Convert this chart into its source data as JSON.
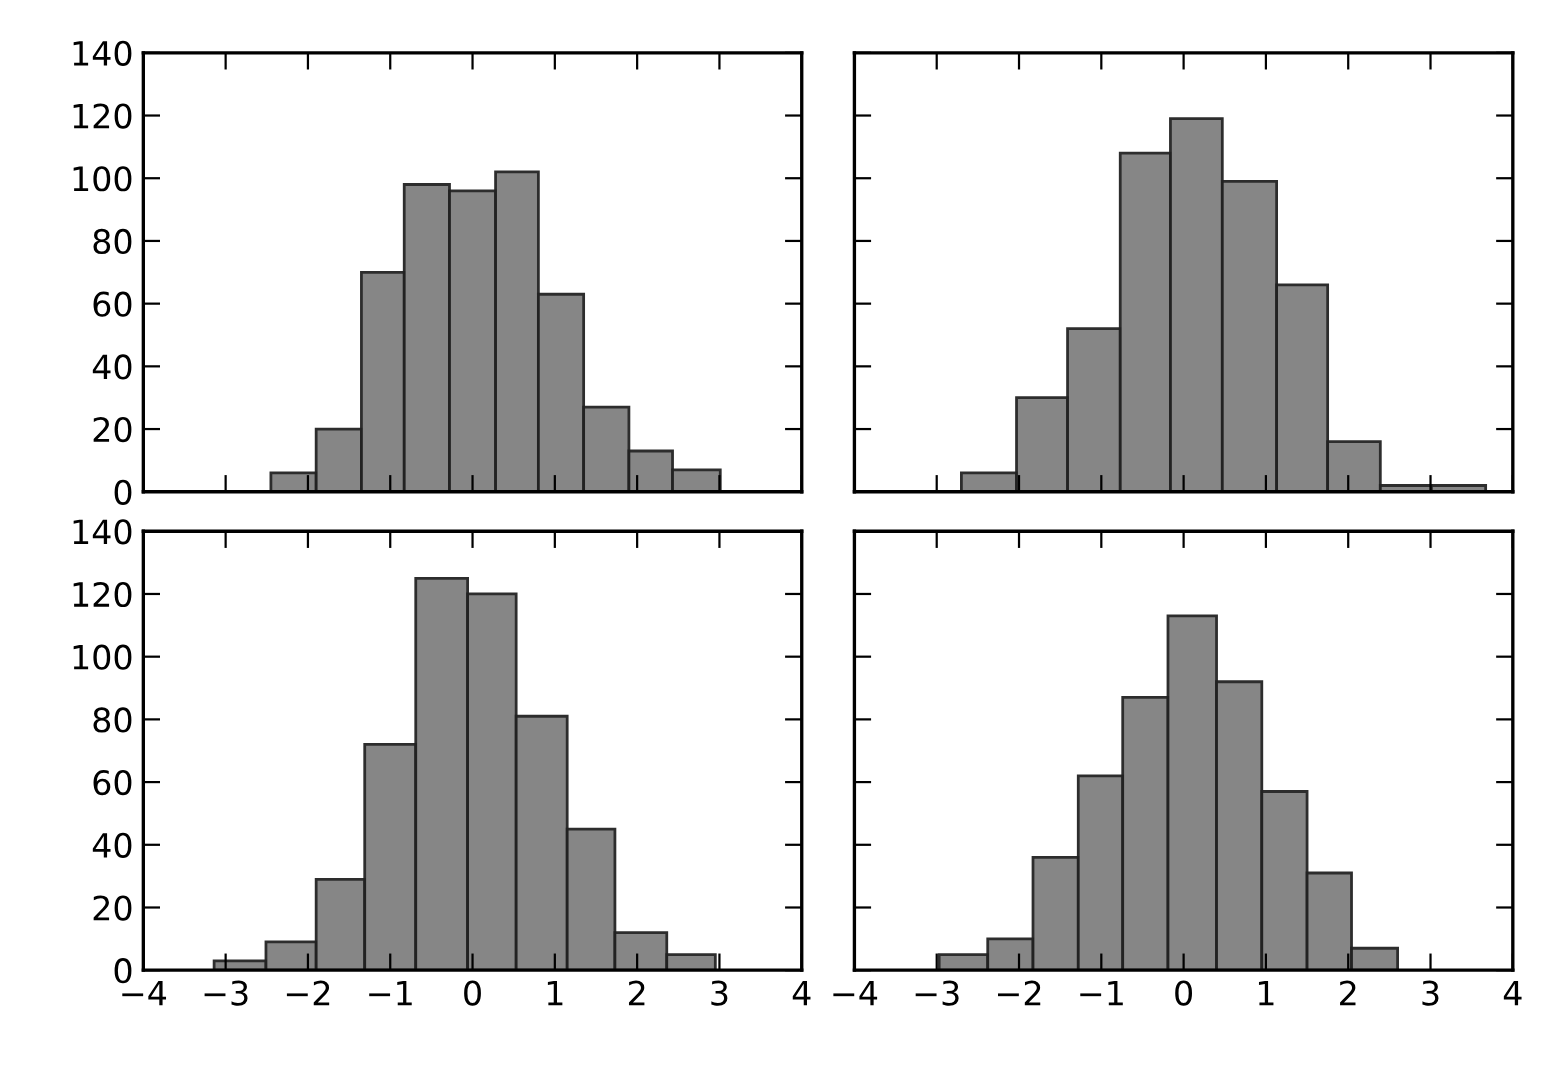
{
  "chart_data": [
    {
      "type": "histogram",
      "bins": [
        -2.45,
        -1.9,
        -1.35,
        -0.83,
        -0.28,
        0.28,
        0.8,
        1.35,
        1.9,
        2.43,
        3.01
      ],
      "values": [
        6,
        20,
        70,
        98,
        96,
        102,
        63,
        27,
        13,
        7
      ],
      "color": "#808080",
      "xlim": [
        -4,
        4
      ],
      "ylim": [
        0,
        140
      ],
      "xticks": [
        -4,
        -3,
        -2,
        -1,
        0,
        1,
        2,
        3,
        4
      ],
      "yticks": [
        0,
        20,
        40,
        60,
        80,
        100,
        120,
        140
      ],
      "tick_labels": "y"
    },
    {
      "type": "histogram",
      "bins": [
        -2.7,
        -2.03,
        -1.41,
        -0.77,
        -0.16,
        0.47,
        1.13,
        1.75,
        2.39,
        3.01,
        3.67
      ],
      "values": [
        6,
        30,
        52,
        108,
        119,
        99,
        66,
        16,
        2,
        2
      ],
      "color": "#808080",
      "xlim": [
        -4,
        4
      ],
      "ylim": [
        0,
        140
      ],
      "xticks": [
        -4,
        -3,
        -2,
        -1,
        0,
        1,
        2,
        3,
        4
      ],
      "yticks": [
        0,
        20,
        40,
        60,
        80,
        100,
        120,
        140
      ],
      "tick_labels": false
    },
    {
      "type": "histogram",
      "bins": [
        -3.14,
        -2.51,
        -1.9,
        -1.31,
        -0.69,
        -0.06,
        0.53,
        1.15,
        1.73,
        2.36,
        2.95
      ],
      "values": [
        3,
        9,
        29,
        72,
        125,
        120,
        81,
        45,
        12,
        5
      ],
      "color": "#808080",
      "xlim": [
        -4,
        4
      ],
      "ylim": [
        0,
        140
      ],
      "xticks": [
        -4,
        -3,
        -2,
        -1,
        0,
        1,
        2,
        3,
        4
      ],
      "yticks": [
        0,
        20,
        40,
        60,
        80,
        100,
        120,
        140
      ]
    },
    {
      "type": "histogram",
      "bins": [
        -2.97,
        -2.38,
        -1.83,
        -1.28,
        -0.74,
        -0.19,
        0.4,
        0.95,
        1.5,
        2.04,
        2.6
      ],
      "values": [
        5,
        10,
        36,
        62,
        87,
        113,
        92,
        57,
        31,
        7
      ],
      "color": "#808080",
      "xlim": [
        -4,
        4
      ],
      "ylim": [
        0,
        140
      ],
      "xticks": [
        -4,
        -3,
        -2,
        -1,
        0,
        1,
        2,
        3,
        4
      ],
      "yticks": [
        0,
        20,
        40,
        60,
        80,
        100,
        120,
        140
      ],
      "tick_labels": "x"
    }
  ]
}
